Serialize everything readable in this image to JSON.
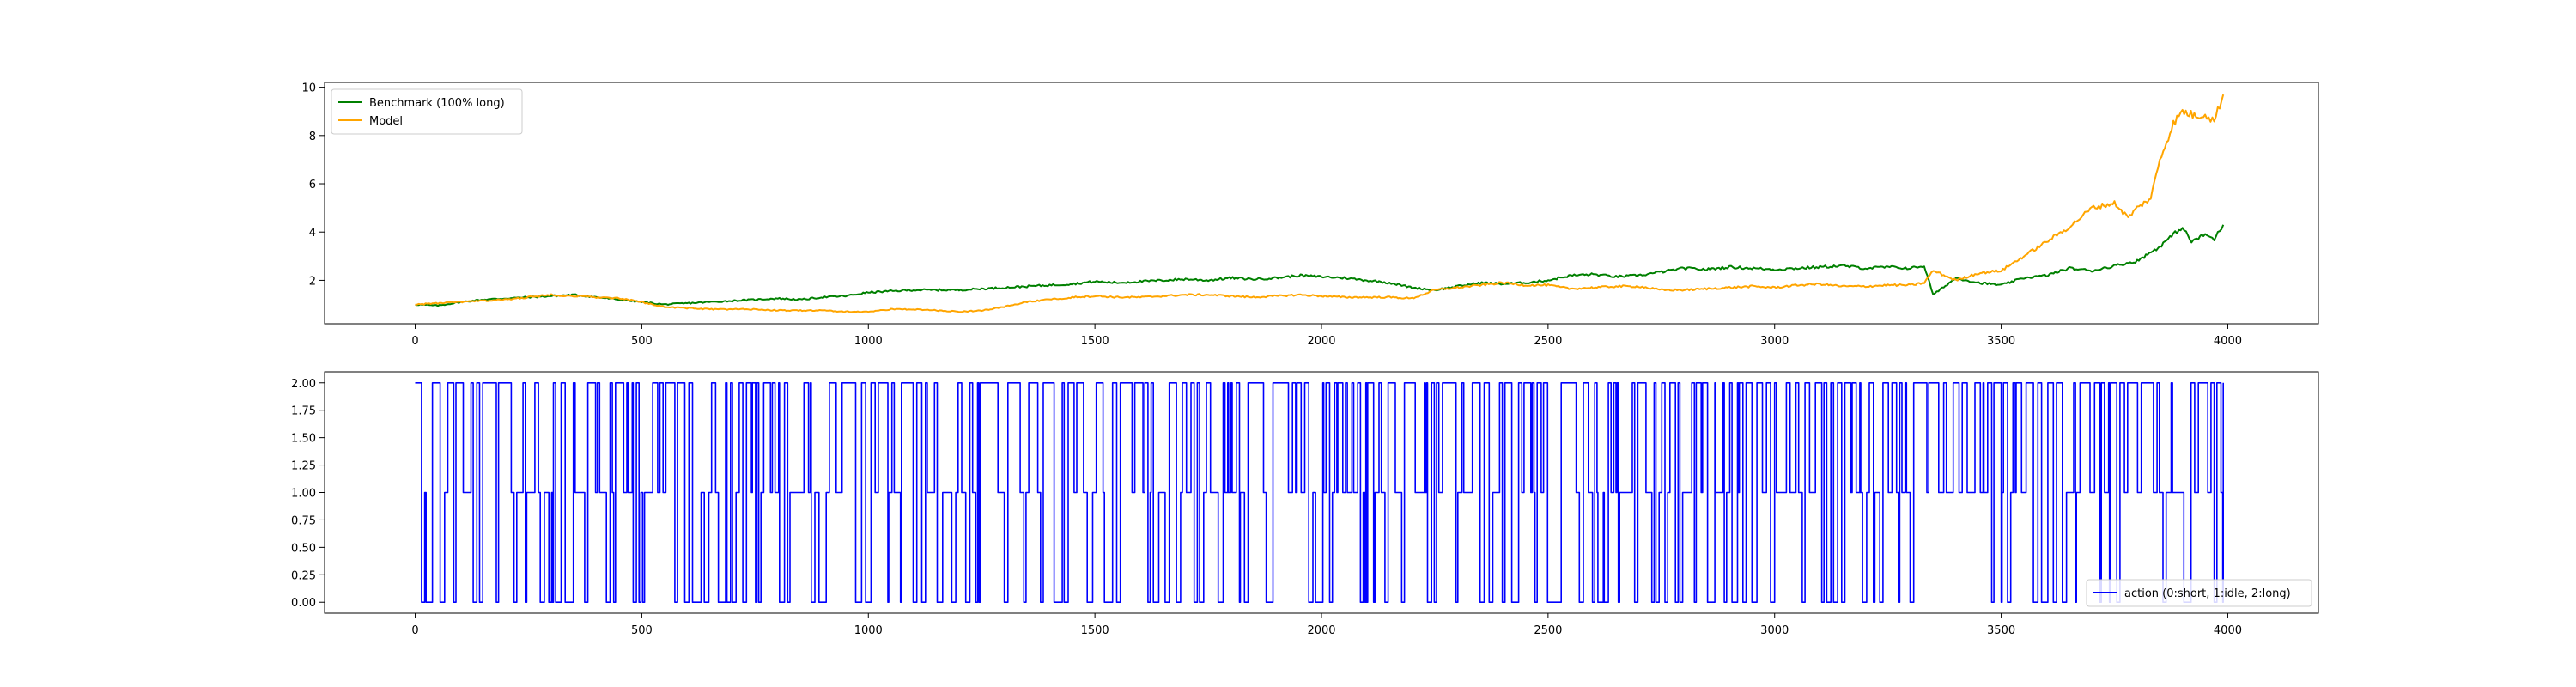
{
  "chart_data": [
    {
      "type": "line",
      "title": "",
      "xlabel": "",
      "ylabel": "",
      "xlim": [
        -200,
        4200
      ],
      "ylim": [
        0.2,
        10.2
      ],
      "xticks": [
        0,
        500,
        1000,
        1500,
        2000,
        2500,
        3000,
        3500,
        4000
      ],
      "yticks": [
        2,
        4,
        6,
        8,
        10
      ],
      "grid": false,
      "legend_position": "top-left",
      "series": [
        {
          "name": "Benchmark (100% long)",
          "color": "#008000",
          "x": [
            0,
            50,
            100,
            150,
            200,
            250,
            300,
            350,
            400,
            450,
            500,
            550,
            600,
            650,
            700,
            750,
            800,
            850,
            900,
            950,
            1000,
            1050,
            1100,
            1150,
            1200,
            1250,
            1300,
            1350,
            1400,
            1450,
            1500,
            1550,
            1600,
            1650,
            1700,
            1750,
            1800,
            1850,
            1900,
            1950,
            2000,
            2050,
            2100,
            2150,
            2200,
            2250,
            2300,
            2350,
            2400,
            2450,
            2500,
            2550,
            2600,
            2650,
            2700,
            2750,
            2800,
            2850,
            2900,
            2950,
            3000,
            3050,
            3100,
            3150,
            3200,
            3250,
            3300,
            3330,
            3350,
            3400,
            3450,
            3500,
            3550,
            3600,
            3650,
            3700,
            3750,
            3800,
            3850,
            3880,
            3900,
            3920,
            3950,
            3970,
            3990
          ],
          "values": [
            1.0,
            0.95,
            1.1,
            1.2,
            1.25,
            1.3,
            1.35,
            1.4,
            1.3,
            1.2,
            1.1,
            1.0,
            1.05,
            1.1,
            1.15,
            1.2,
            1.25,
            1.2,
            1.3,
            1.35,
            1.5,
            1.55,
            1.6,
            1.6,
            1.6,
            1.65,
            1.7,
            1.75,
            1.8,
            1.85,
            1.95,
            1.9,
            1.95,
            2.0,
            2.05,
            2.0,
            2.1,
            2.05,
            2.1,
            2.2,
            2.15,
            2.1,
            2.0,
            1.9,
            1.7,
            1.6,
            1.75,
            1.9,
            1.85,
            1.9,
            2.0,
            2.2,
            2.25,
            2.15,
            2.2,
            2.35,
            2.5,
            2.45,
            2.55,
            2.5,
            2.45,
            2.5,
            2.55,
            2.6,
            2.5,
            2.55,
            2.5,
            2.6,
            1.4,
            2.1,
            1.9,
            1.8,
            2.1,
            2.2,
            2.5,
            2.4,
            2.6,
            2.8,
            3.4,
            3.9,
            4.2,
            3.6,
            3.9,
            3.7,
            4.3
          ]
        },
        {
          "name": "Model",
          "color": "#ffa500",
          "x": [
            0,
            50,
            100,
            150,
            200,
            250,
            300,
            350,
            400,
            450,
            500,
            550,
            600,
            650,
            700,
            750,
            800,
            850,
            900,
            950,
            1000,
            1050,
            1100,
            1150,
            1200,
            1250,
            1300,
            1350,
            1400,
            1450,
            1500,
            1550,
            1600,
            1650,
            1700,
            1750,
            1800,
            1850,
            1900,
            1950,
            2000,
            2050,
            2100,
            2150,
            2200,
            2250,
            2300,
            2350,
            2400,
            2450,
            2500,
            2550,
            2600,
            2650,
            2700,
            2750,
            2800,
            2850,
            2900,
            2950,
            3000,
            3050,
            3100,
            3150,
            3200,
            3250,
            3300,
            3330,
            3350,
            3400,
            3450,
            3500,
            3550,
            3600,
            3650,
            3700,
            3750,
            3780,
            3800,
            3830,
            3850,
            3880,
            3900,
            3930,
            3950,
            3970,
            3990
          ],
          "values": [
            1.0,
            1.05,
            1.1,
            1.15,
            1.2,
            1.3,
            1.4,
            1.35,
            1.3,
            1.25,
            1.1,
            0.9,
            0.85,
            0.8,
            0.8,
            0.8,
            0.75,
            0.75,
            0.75,
            0.7,
            0.7,
            0.8,
            0.8,
            0.75,
            0.7,
            0.75,
            0.9,
            1.1,
            1.2,
            1.3,
            1.35,
            1.3,
            1.3,
            1.35,
            1.4,
            1.4,
            1.35,
            1.3,
            1.35,
            1.4,
            1.35,
            1.3,
            1.3,
            1.3,
            1.25,
            1.6,
            1.7,
            1.8,
            1.9,
            1.8,
            1.8,
            1.65,
            1.7,
            1.75,
            1.75,
            1.6,
            1.6,
            1.65,
            1.7,
            1.75,
            1.7,
            1.8,
            1.85,
            1.75,
            1.75,
            1.8,
            1.8,
            1.9,
            2.4,
            2.0,
            2.3,
            2.4,
            3.0,
            3.6,
            4.2,
            5.0,
            5.2,
            4.6,
            5.0,
            5.4,
            7.0,
            8.5,
            9.0,
            8.8,
            8.9,
            8.6,
            9.7
          ]
        }
      ]
    },
    {
      "type": "line",
      "title": "",
      "xlabel": "",
      "ylabel": "",
      "xlim": [
        -200,
        4200
      ],
      "ylim": [
        -0.1,
        2.1
      ],
      "xticks": [
        0,
        500,
        1000,
        1500,
        2000,
        2500,
        3000,
        3500,
        4000
      ],
      "yticks": [
        0.0,
        0.25,
        0.5,
        0.75,
        1.0,
        1.25,
        1.5,
        1.75,
        2.0
      ],
      "ytick_labels": [
        "0.00",
        "0.25",
        "0.50",
        "0.75",
        "1.00",
        "1.25",
        "1.50",
        "1.75",
        "2.00"
      ],
      "grid": false,
      "legend_position": "lower-right",
      "series": [
        {
          "name": "action (0:short, 1:idle, 2:long)",
          "color": "#0000ff",
          "drawstyle": "steps",
          "x_range": [
            0,
            3990
          ],
          "values": [
            2,
            0,
            1
          ]
        }
      ]
    }
  ]
}
